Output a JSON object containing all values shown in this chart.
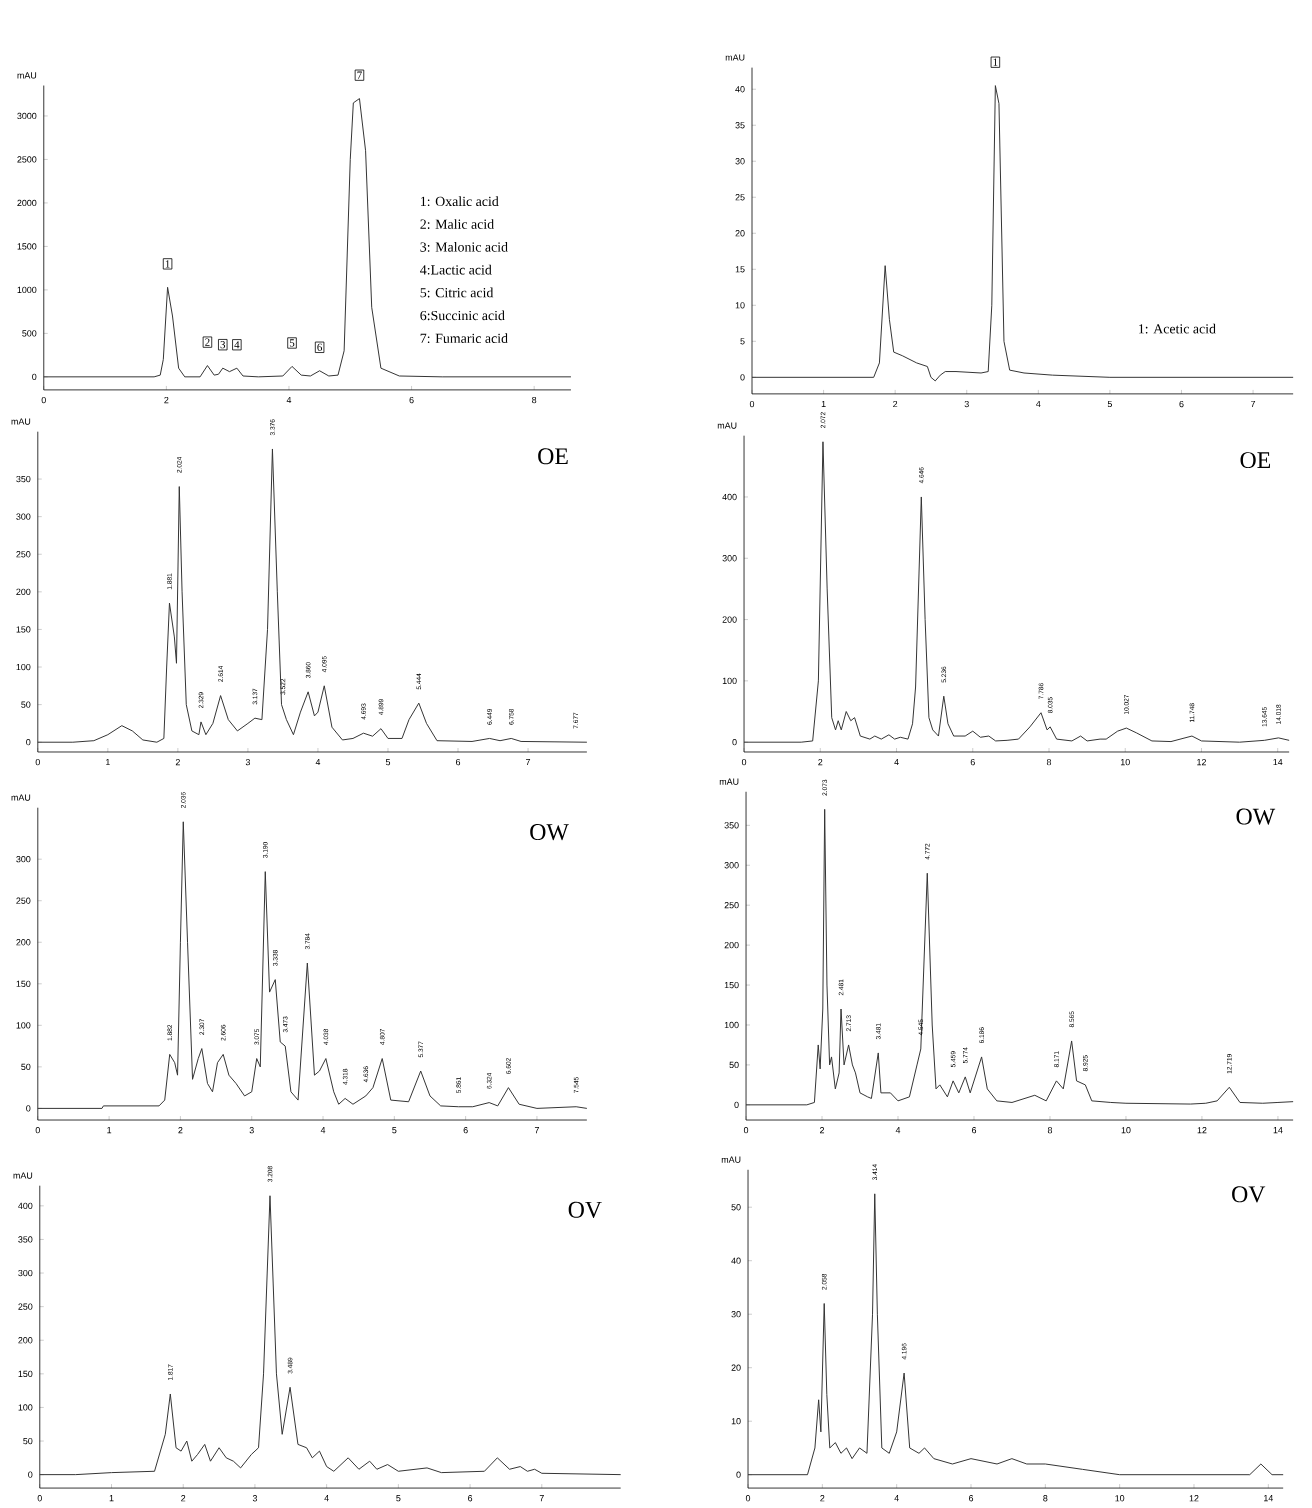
{
  "chart_data": [
    {
      "type": "line",
      "ylabel": "mAU",
      "color": "#333333",
      "xlim": [
        0,
        8.6
      ],
      "ylim": [
        -150,
        3350
      ],
      "xticks": [
        0,
        2,
        4,
        6,
        8
      ],
      "yticks": [
        0,
        500,
        1000,
        1500,
        2000,
        2500,
        3000
      ],
      "x": [
        0,
        1.8,
        1.9,
        1.95,
        2.02,
        2.1,
        2.2,
        2.3,
        2.55,
        2.67,
        2.78,
        2.85,
        2.92,
        3.03,
        3.15,
        3.25,
        3.5,
        3.9,
        4.05,
        4.2,
        4.35,
        4.5,
        4.65,
        4.8,
        4.9,
        5.0,
        5.05,
        5.15,
        5.25,
        5.35,
        5.5,
        5.8,
        6.5,
        8.6
      ],
      "values": [
        0,
        0,
        20,
        200,
        1030,
        700,
        100,
        0,
        0,
        130,
        20,
        30,
        100,
        60,
        100,
        10,
        0,
        10,
        120,
        20,
        10,
        70,
        10,
        20,
        300,
        2500,
        3150,
        3200,
        2600,
        800,
        100,
        10,
        0,
        0
      ],
      "annotations": [
        {
          "text": "1",
          "x": 2.02,
          "y": 1030
        },
        {
          "text": "2",
          "x": 2.67,
          "y": 130
        },
        {
          "text": "3",
          "x": 2.92,
          "y": 100
        },
        {
          "text": "4",
          "x": 3.15,
          "y": 100
        },
        {
          "text": "5",
          "x": 4.05,
          "y": 120
        },
        {
          "text": "6",
          "x": 4.5,
          "y": 70
        },
        {
          "text": "7",
          "x": 5.15,
          "y": 3200
        },
        "1: Oxalic acid",
        "2: Malic acid",
        "3: Malonic acid",
        "4:Lactic acid",
        "5: Citric acid",
        "6:Succinic acid",
        "7: Fumaric acid"
      ]
    },
    {
      "type": "line",
      "ylabel": "mAU",
      "color": "#333333",
      "xlim": [
        0,
        7.56
      ],
      "ylim": [
        -2.3,
        43
      ],
      "xticks": [
        0,
        1,
        2,
        3,
        4,
        5,
        6,
        7
      ],
      "yticks": [
        0,
        5,
        10,
        15,
        20,
        25,
        30,
        35,
        40
      ],
      "x": [
        0,
        1.7,
        1.78,
        1.86,
        1.92,
        1.98,
        2.1,
        2.3,
        2.45,
        2.5,
        2.56,
        2.63,
        2.7,
        2.85,
        3.2,
        3.3,
        3.35,
        3.4,
        3.45,
        3.52,
        3.6,
        3.8,
        4.2,
        5,
        7.56
      ],
      "values": [
        0,
        0,
        2,
        15.5,
        8,
        3.5,
        3,
        2,
        1.5,
        0,
        -0.5,
        0.3,
        0.8,
        0.8,
        0.6,
        0.8,
        10,
        40.5,
        38,
        5,
        1,
        0.6,
        0.3,
        0,
        0
      ],
      "annotations": [
        {
          "text": "1",
          "x": 3.4,
          "y": 40.5
        },
        "1: Acetic acid"
      ]
    },
    {
      "type": "line",
      "title": "OE",
      "ylabel": "mAU",
      "color": "#333333",
      "xlim": [
        0,
        7.84
      ],
      "ylim": [
        -13,
        413
      ],
      "xticks": [
        0,
        1,
        2,
        3,
        4,
        5,
        6,
        7
      ],
      "yticks": [
        0,
        50,
        100,
        150,
        200,
        250,
        300,
        350
      ],
      "x": [
        0,
        0.5,
        0.8,
        1.0,
        1.2,
        1.35,
        1.5,
        1.7,
        1.8,
        1.84,
        1.88,
        1.95,
        1.98,
        2.02,
        2.06,
        2.12,
        2.2,
        2.3,
        2.33,
        2.4,
        2.5,
        2.61,
        2.72,
        2.85,
        3.0,
        3.1,
        3.2,
        3.28,
        3.35,
        3.42,
        3.48,
        3.55,
        3.65,
        3.75,
        3.86,
        3.95,
        4.0,
        4.09,
        4.2,
        4.35,
        4.5,
        4.65,
        4.78,
        4.9,
        5.0,
        5.2,
        5.3,
        5.44,
        5.55,
        5.7,
        6.2,
        6.45,
        6.6,
        6.76,
        6.9,
        7.84
      ],
      "values": [
        0,
        0,
        2,
        10,
        22,
        15,
        3,
        0,
        5,
        100,
        185,
        140,
        105,
        340,
        200,
        50,
        15,
        10,
        27,
        10,
        25,
        62,
        30,
        15,
        25,
        32,
        30,
        150,
        390,
        200,
        50,
        30,
        10,
        40,
        67,
        35,
        40,
        75,
        20,
        3,
        5,
        12,
        8,
        18,
        5,
        5,
        30,
        52,
        25,
        2,
        1,
        5,
        2,
        5,
        1,
        0
      ],
      "annotations": [
        {
          "text": "1.881",
          "x": 1.88,
          "y": 185
        },
        {
          "text": "2.024",
          "x": 2.02,
          "y": 340
        },
        {
          "text": "2.329",
          "x": 2.33,
          "y": 27
        },
        {
          "text": "2.614",
          "x": 2.61,
          "y": 62
        },
        {
          "text": "3.137",
          "x": 3.1,
          "y": 32
        },
        {
          "text": "3.376",
          "x": 3.35,
          "y": 390
        },
        {
          "text": "3.522",
          "x": 3.5,
          "y": 45
        },
        {
          "text": "3.860",
          "x": 3.86,
          "y": 67
        },
        {
          "text": "4.095",
          "x": 4.09,
          "y": 75
        },
        {
          "text": "4.693",
          "x": 4.65,
          "y": 12
        },
        {
          "text": "4.899",
          "x": 4.9,
          "y": 18
        },
        {
          "text": "5.444",
          "x": 5.44,
          "y": 52
        },
        {
          "text": "6.449",
          "x": 6.45,
          "y": 5
        },
        {
          "text": "6.758",
          "x": 6.76,
          "y": 5
        },
        {
          "text": "7.677",
          "x": 7.68,
          "y": 0
        }
      ]
    },
    {
      "type": "line",
      "title": "OE",
      "ylabel": "mAU",
      "color": "#333333",
      "xlim": [
        0,
        14.3
      ],
      "ylim": [
        -16,
        500
      ],
      "xticks": [
        0,
        2,
        4,
        6,
        8,
        10,
        12,
        14
      ],
      "yticks": [
        0,
        100,
        200,
        300,
        400
      ],
      "x": [
        0,
        1.5,
        1.8,
        1.95,
        2.07,
        2.18,
        2.3,
        2.4,
        2.47,
        2.55,
        2.68,
        2.8,
        2.9,
        3.05,
        3.3,
        3.43,
        3.6,
        3.8,
        3.95,
        4.1,
        4.3,
        4.42,
        4.5,
        4.65,
        4.75,
        4.85,
        4.95,
        5.1,
        5.24,
        5.35,
        5.5,
        5.8,
        6.0,
        6.2,
        6.42,
        6.6,
        6.9,
        7.2,
        7.5,
        7.79,
        7.95,
        8.03,
        8.2,
        8.6,
        8.83,
        9.0,
        9.34,
        9.5,
        9.8,
        10.03,
        10.3,
        10.7,
        11.2,
        11.75,
        12.0,
        13.0,
        13.65,
        14.02,
        14.3
      ],
      "values": [
        0,
        0,
        2,
        100,
        490,
        250,
        40,
        20,
        35,
        20,
        50,
        35,
        40,
        10,
        5,
        10,
        5,
        12,
        5,
        8,
        5,
        30,
        90,
        400,
        200,
        40,
        20,
        10,
        75,
        30,
        10,
        10,
        18,
        8,
        10,
        2,
        3,
        5,
        25,
        48,
        20,
        25,
        5,
        2,
        10,
        2,
        5,
        5,
        18,
        23,
        15,
        2,
        1,
        10,
        2,
        0,
        3,
        7,
        3
      ],
      "annotations": [
        {
          "text": "2.072",
          "x": 2.07,
          "y": 490
        },
        {
          "text": "4.646",
          "x": 4.65,
          "y": 400
        },
        {
          "text": "5.236",
          "x": 5.24,
          "y": 75
        },
        {
          "text": "7.786",
          "x": 7.79,
          "y": 48
        },
        {
          "text": "8.035",
          "x": 8.03,
          "y": 25
        },
        {
          "text": "10.027",
          "x": 10.03,
          "y": 23
        },
        {
          "text": "11.748",
          "x": 11.75,
          "y": 10
        },
        {
          "text": "13.645",
          "x": 13.65,
          "y": 3
        },
        {
          "text": "14.018",
          "x": 14.02,
          "y": 7
        }
      ]
    },
    {
      "type": "line",
      "title": "OW",
      "ylabel": "mAU",
      "color": "#333333",
      "xlim": [
        0,
        7.7
      ],
      "ylim": [
        -14,
        362
      ],
      "xticks": [
        0,
        1,
        2,
        3,
        4,
        5,
        6,
        7
      ],
      "yticks": [
        0,
        50,
        100,
        150,
        200,
        250,
        300
      ],
      "x": [
        0,
        0.9,
        0.92,
        1.7,
        1.78,
        1.85,
        1.92,
        1.96,
        2.0,
        2.04,
        2.1,
        2.17,
        2.25,
        2.3,
        2.38,
        2.45,
        2.52,
        2.6,
        2.68,
        2.78,
        2.9,
        3.0,
        3.07,
        3.12,
        3.19,
        3.25,
        3.33,
        3.4,
        3.47,
        3.55,
        3.65,
        3.78,
        3.88,
        3.95,
        4.04,
        4.15,
        4.22,
        4.31,
        4.42,
        4.6,
        4.7,
        4.83,
        4.95,
        5.2,
        5.37,
        5.5,
        5.65,
        5.9,
        6.1,
        6.33,
        6.45,
        6.6,
        6.75,
        7.0,
        7.55,
        7.7
      ],
      "values": [
        0,
        0,
        3,
        3,
        10,
        65,
        55,
        40,
        200,
        345,
        200,
        35,
        60,
        72,
        30,
        20,
        55,
        65,
        40,
        30,
        15,
        20,
        60,
        50,
        285,
        140,
        155,
        80,
        75,
        20,
        10,
        175,
        40,
        45,
        60,
        20,
        5,
        12,
        5,
        15,
        25,
        60,
        10,
        8,
        45,
        15,
        3,
        2,
        2,
        7,
        3,
        25,
        5,
        0,
        2,
        0
      ],
      "annotations": [
        {
          "text": "1.882",
          "x": 1.85,
          "y": 65
        },
        {
          "text": "2.036",
          "x": 2.04,
          "y": 345
        },
        {
          "text": "2.307",
          "x": 2.3,
          "y": 72
        },
        {
          "text": "2.606",
          "x": 2.6,
          "y": 65
        },
        {
          "text": "3.075",
          "x": 3.07,
          "y": 60
        },
        {
          "text": "3.190",
          "x": 3.19,
          "y": 285
        },
        {
          "text": "3.338",
          "x": 3.33,
          "y": 155
        },
        {
          "text": "3.473",
          "x": 3.47,
          "y": 75
        },
        {
          "text": "3.784",
          "x": 3.78,
          "y": 175
        },
        {
          "text": "4.038",
          "x": 4.04,
          "y": 60
        },
        {
          "text": "4.318",
          "x": 4.31,
          "y": 12
        },
        {
          "text": "4.636",
          "x": 4.6,
          "y": 15
        },
        {
          "text": "4.807",
          "x": 4.83,
          "y": 60
        },
        {
          "text": "5.377",
          "x": 5.37,
          "y": 45
        },
        {
          "text": "5.861",
          "x": 5.9,
          "y": 2
        },
        {
          "text": "6.324",
          "x": 6.33,
          "y": 7
        },
        {
          "text": "6.602",
          "x": 6.6,
          "y": 25
        },
        {
          "text": "7.545",
          "x": 7.55,
          "y": 2
        }
      ]
    },
    {
      "type": "line",
      "title": "OW",
      "ylabel": "mAU",
      "color": "#333333",
      "xlim": [
        0,
        14.4
      ],
      "ylim": [
        -19,
        392
      ],
      "xticks": [
        0,
        2,
        4,
        6,
        8,
        10,
        12,
        14
      ],
      "yticks": [
        0,
        50,
        100,
        150,
        200,
        250,
        300,
        350
      ],
      "x": [
        0,
        1.6,
        1.8,
        1.9,
        1.95,
        2.02,
        2.07,
        2.13,
        2.2,
        2.25,
        2.35,
        2.45,
        2.5,
        2.58,
        2.7,
        2.8,
        2.88,
        3.0,
        3.2,
        3.3,
        3.48,
        3.55,
        3.8,
        4.0,
        4.3,
        4.5,
        4.6,
        4.77,
        4.9,
        5.0,
        5.1,
        5.3,
        5.45,
        5.6,
        5.77,
        5.9,
        6.2,
        6.35,
        6.6,
        7.0,
        7.6,
        7.9,
        8.17,
        8.35,
        8.57,
        8.7,
        8.93,
        9.1,
        9.6,
        10.0,
        11.7,
        12.1,
        12.4,
        12.72,
        13.0,
        13.6,
        14.0,
        14.4
      ],
      "values": [
        0,
        0,
        3,
        75,
        45,
        120,
        370,
        150,
        50,
        60,
        20,
        40,
        120,
        50,
        75,
        50,
        40,
        15,
        10,
        8,
        65,
        15,
        15,
        5,
        10,
        50,
        70,
        290,
        100,
        20,
        25,
        10,
        30,
        15,
        35,
        15,
        60,
        20,
        5,
        3,
        12,
        5,
        30,
        20,
        80,
        30,
        25,
        5,
        3,
        2,
        1,
        2,
        5,
        22,
        3,
        2,
        3,
        4
      ],
      "annotations": [
        {
          "text": "2.073",
          "x": 2.07,
          "y": 370
        },
        {
          "text": "2.481",
          "x": 2.5,
          "y": 120
        },
        {
          "text": "2.713",
          "x": 2.7,
          "y": 75
        },
        {
          "text": "3.481",
          "x": 3.48,
          "y": 65
        },
        {
          "text": "4.545",
          "x": 4.6,
          "y": 70
        },
        {
          "text": "4.772",
          "x": 4.77,
          "y": 290
        },
        {
          "text": "5.459",
          "x": 5.45,
          "y": 30
        },
        {
          "text": "5.774",
          "x": 5.77,
          "y": 35
        },
        {
          "text": "6.186",
          "x": 6.2,
          "y": 60
        },
        {
          "text": "8.171",
          "x": 8.17,
          "y": 30
        },
        {
          "text": "8.565",
          "x": 8.57,
          "y": 80
        },
        {
          "text": "8.925",
          "x": 8.93,
          "y": 25
        },
        {
          "text": "12.719",
          "x": 12.72,
          "y": 22
        }
      ]
    },
    {
      "type": "line",
      "title": "OV",
      "ylabel": "mAU",
      "color": "#333333",
      "xlim": [
        0,
        8.1
      ],
      "ylim": [
        -20,
        430
      ],
      "xticks": [
        0,
        1,
        2,
        3,
        4,
        5,
        6,
        7
      ],
      "yticks": [
        0,
        50,
        100,
        150,
        200,
        250,
        300,
        350,
        400
      ],
      "x": [
        0,
        0.5,
        1.0,
        1.6,
        1.75,
        1.82,
        1.9,
        1.97,
        2.05,
        2.12,
        2.2,
        2.3,
        2.38,
        2.5,
        2.6,
        2.7,
        2.8,
        2.95,
        3.05,
        3.12,
        3.21,
        3.3,
        3.38,
        3.49,
        3.6,
        3.72,
        3.8,
        3.9,
        4.0,
        4.1,
        4.3,
        4.45,
        4.6,
        4.7,
        4.85,
        5.0,
        5.4,
        5.6,
        6.2,
        6.38,
        6.55,
        6.7,
        6.8,
        6.9,
        7.0,
        8.1
      ],
      "values": [
        0,
        0,
        3,
        5,
        60,
        120,
        40,
        35,
        50,
        20,
        30,
        45,
        20,
        40,
        25,
        20,
        10,
        30,
        40,
        150,
        415,
        150,
        60,
        130,
        45,
        40,
        25,
        35,
        12,
        5,
        25,
        8,
        20,
        8,
        15,
        5,
        10,
        3,
        5,
        25,
        8,
        12,
        5,
        8,
        2,
        0
      ],
      "annotations": [
        {
          "text": "1.817",
          "x": 1.82,
          "y": 120
        },
        {
          "text": "3.208",
          "x": 3.21,
          "y": 415
        },
        {
          "text": "3.489",
          "x": 3.49,
          "y": 130
        }
      ]
    },
    {
      "type": "line",
      "title": "OV",
      "ylabel": "mAU",
      "color": "#333333",
      "xlim": [
        0,
        14.4
      ],
      "ylim": [
        -2.5,
        57
      ],
      "xticks": [
        0,
        2,
        4,
        6,
        8,
        10,
        12,
        14
      ],
      "yticks": [
        0,
        10,
        20,
        30,
        40,
        50
      ],
      "x": [
        0,
        1.6,
        1.8,
        1.9,
        1.96,
        2.05,
        2.12,
        2.2,
        2.35,
        2.5,
        2.65,
        2.8,
        3.0,
        3.2,
        3.35,
        3.41,
        3.48,
        3.6,
        3.8,
        4.0,
        4.2,
        4.35,
        4.6,
        4.75,
        5.0,
        5.5,
        6.0,
        6.7,
        7.1,
        7.5,
        8.0,
        9.0,
        10,
        13.5,
        13.8,
        14.1,
        14.4
      ],
      "values": [
        0,
        0,
        5,
        14,
        8,
        32,
        15,
        5,
        6,
        4,
        5,
        3,
        5,
        4,
        30,
        52.5,
        30,
        5,
        4,
        8,
        19,
        5,
        4,
        5,
        3,
        2,
        3,
        2,
        3,
        2,
        2,
        1,
        0,
        0,
        2,
        0,
        0
      ],
      "annotations": [
        {
          "text": "2.058",
          "x": 2.05,
          "y": 32
        },
        {
          "text": "3.414",
          "x": 3.41,
          "y": 52.5
        },
        {
          "text": "4.196",
          "x": 4.2,
          "y": 19
        }
      ]
    }
  ]
}
